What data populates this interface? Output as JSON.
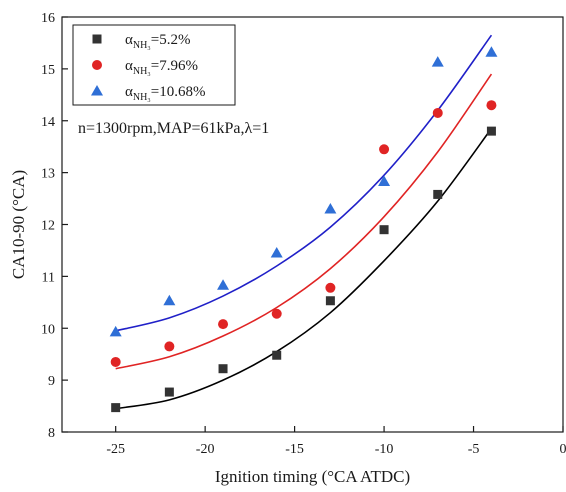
{
  "chart_data": {
    "type": "scatter",
    "xlabel": "Ignition timing (°CA ATDC)",
    "ylabel": "CA10-90 (°CA)",
    "xlim": [
      -28,
      0
    ],
    "ylim": [
      8,
      16
    ],
    "x_ticks": [
      -25,
      -20,
      -15,
      -10,
      -5,
      0
    ],
    "y_ticks": [
      8,
      9,
      10,
      11,
      12,
      13,
      14,
      15,
      16
    ],
    "grid": false,
    "legend_position": "top-left",
    "annotation": "n=1300rpm,MAP=61kPa,λ=1",
    "series": [
      {
        "name": "α",
        "name_sub": "NH₃",
        "name_value": "=5.2%",
        "marker": "square",
        "color": "#333333",
        "fit_color": "#000000",
        "x": [
          -25,
          -22,
          -19,
          -16,
          -13,
          -10,
          -7,
          -4
        ],
        "y": [
          8.47,
          8.77,
          9.22,
          9.48,
          10.53,
          11.9,
          12.58,
          13.8
        ],
        "fit": [
          [
            -25,
            8.45
          ],
          [
            -22,
            8.62
          ],
          [
            -19,
            9.0
          ],
          [
            -16,
            9.55
          ],
          [
            -13,
            10.3
          ],
          [
            -10,
            11.3
          ],
          [
            -7,
            12.45
          ],
          [
            -4,
            13.85
          ]
        ]
      },
      {
        "name": "α",
        "name_sub": "NH₃",
        "name_value": "=7.96%",
        "marker": "circle",
        "color": "#e02424",
        "fit_color": "#e02424",
        "x": [
          -25,
          -22,
          -19,
          -16,
          -13,
          -10,
          -7,
          -4
        ],
        "y": [
          9.35,
          9.65,
          10.08,
          10.28,
          10.78,
          13.45,
          14.15,
          14.3
        ],
        "fit": [
          [
            -25,
            9.22
          ],
          [
            -22,
            9.45
          ],
          [
            -19,
            9.85
          ],
          [
            -16,
            10.4
          ],
          [
            -13,
            11.15
          ],
          [
            -10,
            12.15
          ],
          [
            -7,
            13.4
          ],
          [
            -4,
            14.9
          ]
        ]
      },
      {
        "name": "α",
        "name_sub": "NH₃",
        "name_value": "=10.68%",
        "marker": "triangle",
        "color": "#2f6fd6",
        "fit_color": "#2020c8",
        "x": [
          -25,
          -22,
          -19,
          -16,
          -13,
          -10,
          -7,
          -4
        ],
        "y": [
          9.93,
          10.53,
          10.83,
          11.45,
          12.3,
          12.83,
          15.13,
          15.32
        ],
        "fit": [
          [
            -25,
            9.95
          ],
          [
            -22,
            10.2
          ],
          [
            -19,
            10.62
          ],
          [
            -16,
            11.2
          ],
          [
            -13,
            11.95
          ],
          [
            -10,
            12.95
          ],
          [
            -7,
            14.2
          ],
          [
            -4,
            15.65
          ]
        ]
      }
    ]
  }
}
